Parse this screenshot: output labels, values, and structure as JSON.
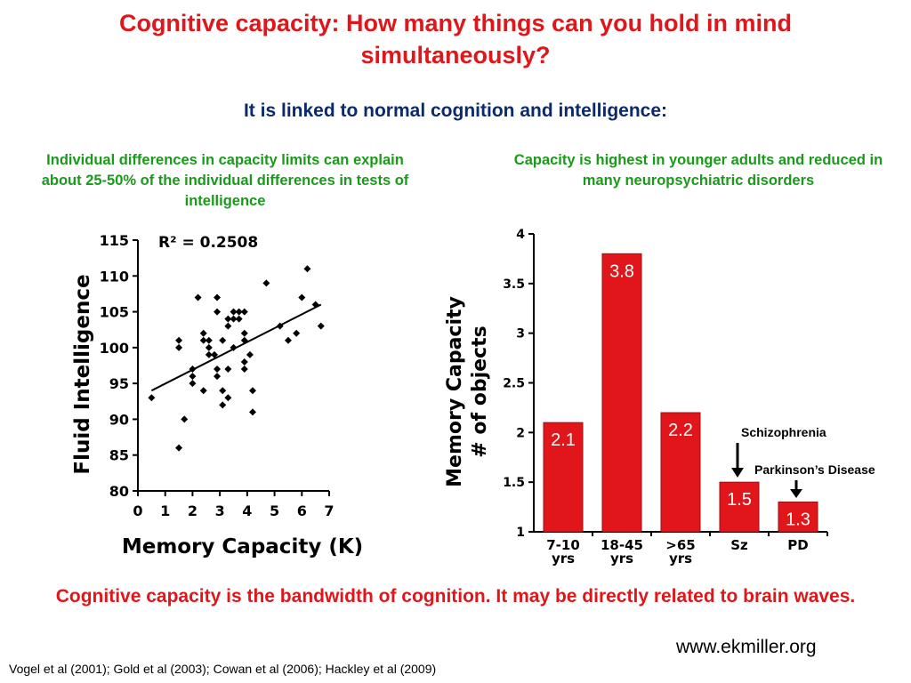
{
  "title": "Cognitive capacity: How many things can you hold in mind simultaneously?",
  "subtitle": "It is linked to normal cognition and intelligence:",
  "left_caption": "Individual differences in capacity limits can explain about 25-50% of the individual differences in tests of intelligence",
  "right_caption": "Capacity is highest in younger adults and reduced in many neuropsychiatric disorders",
  "bottom_text": "Cognitive capacity is the bandwidth of cognition.  It may be directly related to brain waves.",
  "website": "www.ekmiller.org",
  "references": "Vogel et al (2001); Gold et al (2003); Cowan et al (2006); Hackley et al (2009)",
  "colors": {
    "title": "#e0161b",
    "subtitle": "#0c2a6b",
    "caption": "#1a9a1a",
    "bar": "#e0161b",
    "bar_label": "#ffffff"
  },
  "chart_data": [
    {
      "type": "scatter",
      "xlabel": "Memory Capacity (K)",
      "ylabel": "Fluid Intelligence",
      "annotation": "R² = 0.2508",
      "xlim": [
        0,
        7
      ],
      "ylim": [
        80,
        115
      ],
      "xticks": [
        0,
        1,
        2,
        3,
        4,
        5,
        6,
        7
      ],
      "yticks": [
        80,
        85,
        90,
        95,
        100,
        105,
        110,
        115
      ],
      "trendline": {
        "x": [
          0.5,
          6.7
        ],
        "y": [
          94,
          106
        ]
      },
      "points": [
        [
          0.5,
          93
        ],
        [
          1.5,
          86
        ],
        [
          1.5,
          100
        ],
        [
          1.5,
          101
        ],
        [
          1.7,
          90
        ],
        [
          2.0,
          97
        ],
        [
          2.0,
          96
        ],
        [
          2.0,
          95
        ],
        [
          2.2,
          107
        ],
        [
          2.4,
          102
        ],
        [
          2.4,
          101
        ],
        [
          2.4,
          94
        ],
        [
          2.6,
          101
        ],
        [
          2.6,
          100
        ],
        [
          2.6,
          99
        ],
        [
          2.8,
          99
        ],
        [
          2.9,
          107
        ],
        [
          2.9,
          105
        ],
        [
          2.9,
          97
        ],
        [
          2.9,
          96
        ],
        [
          3.1,
          101
        ],
        [
          3.1,
          94
        ],
        [
          3.1,
          92
        ],
        [
          3.3,
          104
        ],
        [
          3.3,
          103
        ],
        [
          3.3,
          97
        ],
        [
          3.3,
          93
        ],
        [
          3.5,
          105
        ],
        [
          3.5,
          104
        ],
        [
          3.5,
          100
        ],
        [
          3.7,
          105
        ],
        [
          3.7,
          104
        ],
        [
          3.9,
          105
        ],
        [
          3.9,
          102
        ],
        [
          3.9,
          101
        ],
        [
          3.9,
          98
        ],
        [
          3.9,
          97
        ],
        [
          4.1,
          99
        ],
        [
          4.2,
          94
        ],
        [
          4.2,
          91
        ],
        [
          4.7,
          109
        ],
        [
          5.2,
          103
        ],
        [
          5.5,
          101
        ],
        [
          5.8,
          102
        ],
        [
          6.0,
          107
        ],
        [
          6.2,
          111
        ],
        [
          6.5,
          106
        ],
        [
          6.7,
          103
        ]
      ]
    },
    {
      "type": "bar",
      "ylabel": "Memory Capacity\n# of objects",
      "ylim": [
        1,
        4
      ],
      "yticks": [
        1,
        1.5,
        2,
        2.5,
        3,
        3.5,
        4
      ],
      "categories": [
        "7-10\nyrs",
        "18-45\nyrs",
        ">65\nyrs",
        "Sz",
        "PD"
      ],
      "values": [
        2.1,
        3.8,
        2.2,
        1.5,
        1.3
      ],
      "annotations": [
        "Schizophrenia",
        "Parkinson’s Disease"
      ]
    }
  ]
}
